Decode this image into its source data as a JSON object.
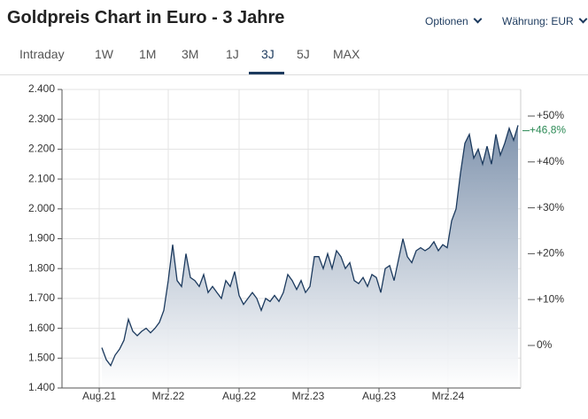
{
  "header": {
    "title": "Goldpreis Chart in Euro - 3 Jahre",
    "options": "Optionen",
    "currency": "Währung: EUR"
  },
  "tabs": {
    "items": [
      "Intraday",
      "1W",
      "1M",
      "3M",
      "1J",
      "3J",
      "5J",
      "MAX"
    ],
    "active": 5
  },
  "chart_data": {
    "type": "area",
    "color": "#1c3a5e",
    "grid": true,
    "x": [
      2021.388,
      2021.42,
      2021.452,
      2021.484,
      2021.516,
      2021.548,
      2021.58,
      2021.612,
      2021.644,
      2021.676,
      2021.708,
      2021.74,
      2021.772,
      2021.804,
      2021.836,
      2021.868,
      2021.9,
      2021.932,
      2021.964,
      2021.996,
      2022.028,
      2022.06,
      2022.092,
      2022.124,
      2022.156,
      2022.188,
      2022.22,
      2022.252,
      2022.284,
      2022.316,
      2022.348,
      2022.38,
      2022.412,
      2022.444,
      2022.476,
      2022.508,
      2022.54,
      2022.572,
      2022.604,
      2022.636,
      2022.668,
      2022.7,
      2022.732,
      2022.764,
      2022.796,
      2022.828,
      2022.86,
      2022.892,
      2022.924,
      2022.956,
      2022.988,
      2023.02,
      2023.052,
      2023.084,
      2023.116,
      2023.148,
      2023.18,
      2023.212,
      2023.244,
      2023.276,
      2023.308,
      2023.34,
      2023.372,
      2023.404,
      2023.436,
      2023.468,
      2023.5,
      2023.532,
      2023.564,
      2023.596,
      2023.628,
      2023.66,
      2023.692,
      2023.724,
      2023.756,
      2023.788,
      2023.82,
      2023.852,
      2023.884,
      2023.916,
      2023.948,
      2023.98,
      2024.012,
      2024.044,
      2024.076,
      2024.108,
      2024.14,
      2024.172,
      2024.204,
      2024.236,
      2024.268,
      2024.3,
      2024.332,
      2024.364,
      2024.396
    ],
    "series": [
      {
        "values": [
          1535,
          1495,
          1475,
          1510,
          1530,
          1560,
          1630,
          1590,
          1575,
          1590,
          1600,
          1585,
          1600,
          1620,
          1660,
          1760,
          1880,
          1760,
          1740,
          1850,
          1770,
          1760,
          1740,
          1780,
          1720,
          1740,
          1720,
          1700,
          1760,
          1740,
          1790,
          1710,
          1680,
          1700,
          1720,
          1700,
          1660,
          1700,
          1690,
          1710,
          1690,
          1720,
          1780,
          1760,
          1730,
          1760,
          1720,
          1740,
          1840,
          1840,
          1800,
          1850,
          1800,
          1860,
          1840,
          1800,
          1820,
          1760,
          1750,
          1770,
          1740,
          1780,
          1770,
          1720,
          1800,
          1810,
          1760,
          1830,
          1900,
          1840,
          1820,
          1860,
          1870,
          1860,
          1870,
          1890,
          1860,
          1880,
          1870,
          1960,
          2000,
          2120,
          2220,
          2250,
          2170,
          2200,
          2150,
          2210,
          2150,
          2250,
          2180,
          2220,
          2270,
          2230,
          2280
        ]
      }
    ],
    "xlim": [
      2021.1,
      2024.415
    ],
    "xticks": [
      {
        "value": 2021.369,
        "label": "Aug.21"
      },
      {
        "value": 2021.868,
        "label": "Mrz.22"
      },
      {
        "value": 2022.38,
        "label": "Aug.22"
      },
      {
        "value": 2022.879,
        "label": "Mrz.23"
      },
      {
        "value": 2023.391,
        "label": "Aug.23"
      },
      {
        "value": 2023.89,
        "label": "Mrz.24"
      }
    ],
    "ylim": [
      1400,
      2400
    ],
    "yticks": [
      {
        "value": 1400,
        "label": "1.400"
      },
      {
        "value": 1500,
        "label": "1.500"
      },
      {
        "value": 1600,
        "label": "1.600"
      },
      {
        "value": 1700,
        "label": "1.700"
      },
      {
        "value": 1800,
        "label": "1.800"
      },
      {
        "value": 1900,
        "label": "1.900"
      },
      {
        "value": 2000,
        "label": "2.000"
      },
      {
        "value": 2100,
        "label": "2.100"
      },
      {
        "value": 2200,
        "label": "2.200"
      },
      {
        "value": 2300,
        "label": "2.300"
      },
      {
        "value": 2400,
        "label": "2.400"
      }
    ],
    "y2lim": [
      -9.27,
      55.79
    ],
    "y2ticks": [
      {
        "value": 0,
        "label": "0%"
      },
      {
        "value": 10,
        "label": "+10%"
      },
      {
        "value": 20,
        "label": "+20%"
      },
      {
        "value": 30,
        "label": "+30%"
      },
      {
        "value": 40,
        "label": "+40%"
      },
      {
        "value": 50,
        "label": "+50%"
      }
    ],
    "annotations": [
      {
        "y2": 46.8,
        "label": "+46,8%",
        "color": "#2e8b57"
      }
    ]
  }
}
